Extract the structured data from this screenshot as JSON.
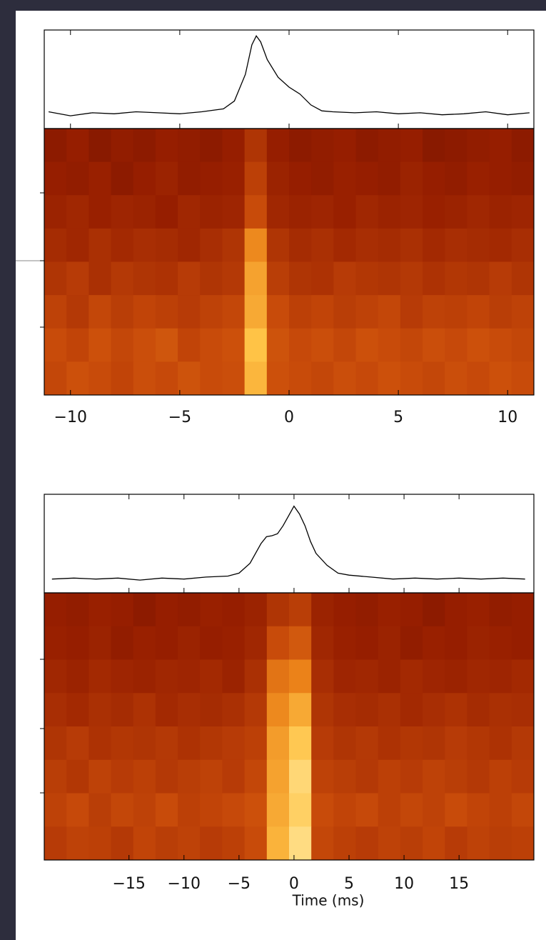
{
  "chart_data": [
    {
      "type": "heatmap",
      "colormap": "afmhot",
      "xlim": [
        -11.2,
        11.2
      ],
      "xticks": [
        {
          "value": -10,
          "label": "−10"
        },
        {
          "value": -5,
          "label": "−5"
        },
        0,
        5,
        10
      ],
      "z": [
        [
          0.18,
          0.2,
          0.17,
          0.19,
          0.18,
          0.2,
          0.19,
          0.18,
          0.2,
          0.3,
          0.2,
          0.18,
          0.19,
          0.2,
          0.18,
          0.19,
          0.2,
          0.17,
          0.18,
          0.19,
          0.2,
          0.18
        ],
        [
          0.2,
          0.19,
          0.21,
          0.18,
          0.2,
          0.22,
          0.19,
          0.2,
          0.21,
          0.35,
          0.22,
          0.2,
          0.19,
          0.21,
          0.2,
          0.19,
          0.22,
          0.2,
          0.19,
          0.21,
          0.2,
          0.19
        ],
        [
          0.22,
          0.24,
          0.21,
          0.23,
          0.22,
          0.2,
          0.24,
          0.22,
          0.23,
          0.4,
          0.24,
          0.22,
          0.23,
          0.21,
          0.24,
          0.22,
          0.23,
          0.21,
          0.22,
          0.24,
          0.22,
          0.23
        ],
        [
          0.26,
          0.24,
          0.28,
          0.25,
          0.27,
          0.26,
          0.24,
          0.27,
          0.3,
          0.62,
          0.3,
          0.26,
          0.28,
          0.25,
          0.27,
          0.26,
          0.28,
          0.25,
          0.27,
          0.26,
          0.25,
          0.27
        ],
        [
          0.3,
          0.33,
          0.28,
          0.32,
          0.3,
          0.29,
          0.33,
          0.3,
          0.32,
          0.7,
          0.34,
          0.3,
          0.29,
          0.33,
          0.31,
          0.3,
          0.32,
          0.29,
          0.31,
          0.3,
          0.33,
          0.3
        ],
        [
          0.36,
          0.32,
          0.38,
          0.34,
          0.37,
          0.35,
          0.33,
          0.36,
          0.38,
          0.72,
          0.4,
          0.35,
          0.37,
          0.34,
          0.36,
          0.38,
          0.33,
          0.36,
          0.35,
          0.37,
          0.34,
          0.36
        ],
        [
          0.4,
          0.37,
          0.42,
          0.38,
          0.41,
          0.44,
          0.37,
          0.4,
          0.42,
          0.8,
          0.43,
          0.39,
          0.41,
          0.38,
          0.42,
          0.4,
          0.38,
          0.41,
          0.39,
          0.42,
          0.4,
          0.38
        ],
        [
          0.38,
          0.42,
          0.4,
          0.37,
          0.41,
          0.39,
          0.43,
          0.4,
          0.41,
          0.76,
          0.42,
          0.4,
          0.38,
          0.41,
          0.39,
          0.42,
          0.4,
          0.38,
          0.41,
          0.39,
          0.42,
          0.4
        ]
      ],
      "profile": {
        "color": "#000000",
        "ylim": [
          0,
          1
        ],
        "x": [
          -11,
          -10,
          -9,
          -8,
          -7,
          -6,
          -5,
          -4,
          -3,
          -2.5,
          -2,
          -1.7,
          -1.5,
          -1.3,
          -1,
          -0.5,
          0,
          0.5,
          1,
          1.5,
          2,
          3,
          4,
          5,
          6,
          7,
          8,
          9,
          10,
          11
        ],
        "values": [
          0.17,
          0.13,
          0.16,
          0.15,
          0.17,
          0.16,
          0.15,
          0.17,
          0.2,
          0.28,
          0.55,
          0.85,
          0.94,
          0.88,
          0.7,
          0.52,
          0.42,
          0.35,
          0.24,
          0.18,
          0.17,
          0.16,
          0.17,
          0.15,
          0.16,
          0.14,
          0.15,
          0.17,
          0.14,
          0.16
        ]
      }
    },
    {
      "type": "heatmap",
      "colormap": "afmhot",
      "xlim": [
        -22.7,
        21.8
      ],
      "xticks": [
        {
          "value": -15,
          "label": "−15"
        },
        {
          "value": -10,
          "label": "−10"
        },
        {
          "value": -5,
          "label": "−5"
        },
        0,
        5,
        10,
        15
      ],
      "xlabel": "Time (ms)",
      "z": [
        [
          0.2,
          0.19,
          0.21,
          0.2,
          0.18,
          0.2,
          0.19,
          0.21,
          0.2,
          0.22,
          0.3,
          0.34,
          0.22,
          0.2,
          0.19,
          0.21,
          0.2,
          0.18,
          0.2,
          0.21,
          0.19,
          0.2
        ],
        [
          0.21,
          0.2,
          0.22,
          0.19,
          0.21,
          0.2,
          0.22,
          0.2,
          0.21,
          0.24,
          0.4,
          0.45,
          0.24,
          0.21,
          0.2,
          0.22,
          0.19,
          0.21,
          0.2,
          0.22,
          0.21,
          0.2
        ],
        [
          0.24,
          0.22,
          0.25,
          0.23,
          0.22,
          0.24,
          0.23,
          0.25,
          0.22,
          0.28,
          0.55,
          0.6,
          0.27,
          0.23,
          0.24,
          0.22,
          0.25,
          0.23,
          0.22,
          0.24,
          0.23,
          0.25
        ],
        [
          0.27,
          0.25,
          0.28,
          0.26,
          0.29,
          0.25,
          0.27,
          0.26,
          0.28,
          0.32,
          0.62,
          0.72,
          0.3,
          0.27,
          0.26,
          0.28,
          0.25,
          0.27,
          0.29,
          0.26,
          0.28,
          0.27
        ],
        [
          0.3,
          0.33,
          0.29,
          0.31,
          0.3,
          0.32,
          0.29,
          0.31,
          0.33,
          0.35,
          0.68,
          0.82,
          0.33,
          0.3,
          0.32,
          0.29,
          0.31,
          0.3,
          0.33,
          0.31,
          0.29,
          0.32
        ],
        [
          0.34,
          0.31,
          0.36,
          0.33,
          0.35,
          0.32,
          0.34,
          0.36,
          0.33,
          0.38,
          0.7,
          0.88,
          0.36,
          0.34,
          0.32,
          0.35,
          0.33,
          0.36,
          0.34,
          0.32,
          0.35,
          0.33
        ],
        [
          0.36,
          0.39,
          0.34,
          0.38,
          0.36,
          0.4,
          0.35,
          0.37,
          0.39,
          0.42,
          0.72,
          0.85,
          0.4,
          0.37,
          0.39,
          0.35,
          0.38,
          0.36,
          0.4,
          0.37,
          0.35,
          0.38
        ],
        [
          0.33,
          0.36,
          0.35,
          0.32,
          0.37,
          0.34,
          0.36,
          0.33,
          0.35,
          0.4,
          0.75,
          0.9,
          0.38,
          0.35,
          0.33,
          0.36,
          0.34,
          0.37,
          0.33,
          0.36,
          0.34,
          0.35
        ]
      ],
      "profile": {
        "color": "#000000",
        "ylim": [
          0,
          1
        ],
        "x": [
          -22,
          -20,
          -18,
          -16,
          -14,
          -12,
          -10,
          -8,
          -6,
          -5,
          -4,
          -3,
          -2.5,
          -2,
          -1.5,
          -1,
          -0.5,
          0,
          0.5,
          1,
          1.5,
          2,
          3,
          4,
          5,
          7,
          9,
          11,
          13,
          15,
          17,
          19,
          21
        ],
        "values": [
          0.14,
          0.15,
          0.14,
          0.15,
          0.13,
          0.15,
          0.14,
          0.16,
          0.17,
          0.2,
          0.3,
          0.5,
          0.57,
          0.58,
          0.6,
          0.68,
          0.78,
          0.88,
          0.8,
          0.68,
          0.52,
          0.4,
          0.28,
          0.2,
          0.18,
          0.16,
          0.14,
          0.15,
          0.14,
          0.15,
          0.14,
          0.15,
          0.14
        ]
      }
    }
  ]
}
